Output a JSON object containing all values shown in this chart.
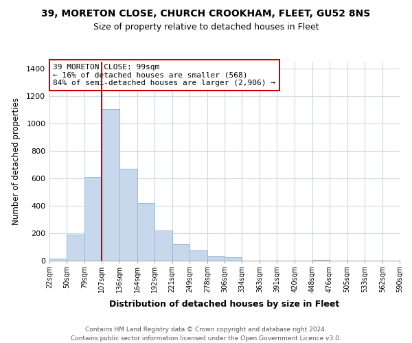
{
  "title": "39, MORETON CLOSE, CHURCH CROOKHAM, FLEET, GU52 8NS",
  "subtitle": "Size of property relative to detached houses in Fleet",
  "xlabel": "Distribution of detached houses by size in Fleet",
  "ylabel": "Number of detached properties",
  "bar_color": "#c8d8ec",
  "bar_edgecolor": "#9ab8d0",
  "vline_color": "#cc0000",
  "vline_x": 107,
  "bin_edges": [
    22,
    50,
    79,
    107,
    136,
    164,
    192,
    221,
    249,
    278,
    306,
    334,
    363,
    391,
    420,
    448,
    476,
    505,
    533,
    562,
    590
  ],
  "bar_heights": [
    15,
    190,
    610,
    1105,
    670,
    420,
    220,
    120,
    75,
    35,
    25,
    0,
    0,
    0,
    0,
    5,
    0,
    0,
    0,
    0
  ],
  "tick_labels": [
    "22sqm",
    "50sqm",
    "79sqm",
    "107sqm",
    "136sqm",
    "164sqm",
    "192sqm",
    "221sqm",
    "249sqm",
    "278sqm",
    "306sqm",
    "334sqm",
    "363sqm",
    "391sqm",
    "420sqm",
    "448sqm",
    "476sqm",
    "505sqm",
    "533sqm",
    "562sqm",
    "590sqm"
  ],
  "ylim": [
    0,
    1450
  ],
  "yticks": [
    0,
    200,
    400,
    600,
    800,
    1000,
    1200,
    1400
  ],
  "annotation_title": "39 MORETON CLOSE: 99sqm",
  "annotation_line1": "← 16% of detached houses are smaller (568)",
  "annotation_line2": "84% of semi-detached houses are larger (2,906) →",
  "annotation_box_color": "#ffffff",
  "annotation_box_edgecolor": "#cc0000",
  "footer_line1": "Contains HM Land Registry data © Crown copyright and database right 2024.",
  "footer_line2": "Contains public sector information licensed under the Open Government Licence v3.0.",
  "background_color": "#ffffff",
  "grid_color": "#ccd8e4"
}
